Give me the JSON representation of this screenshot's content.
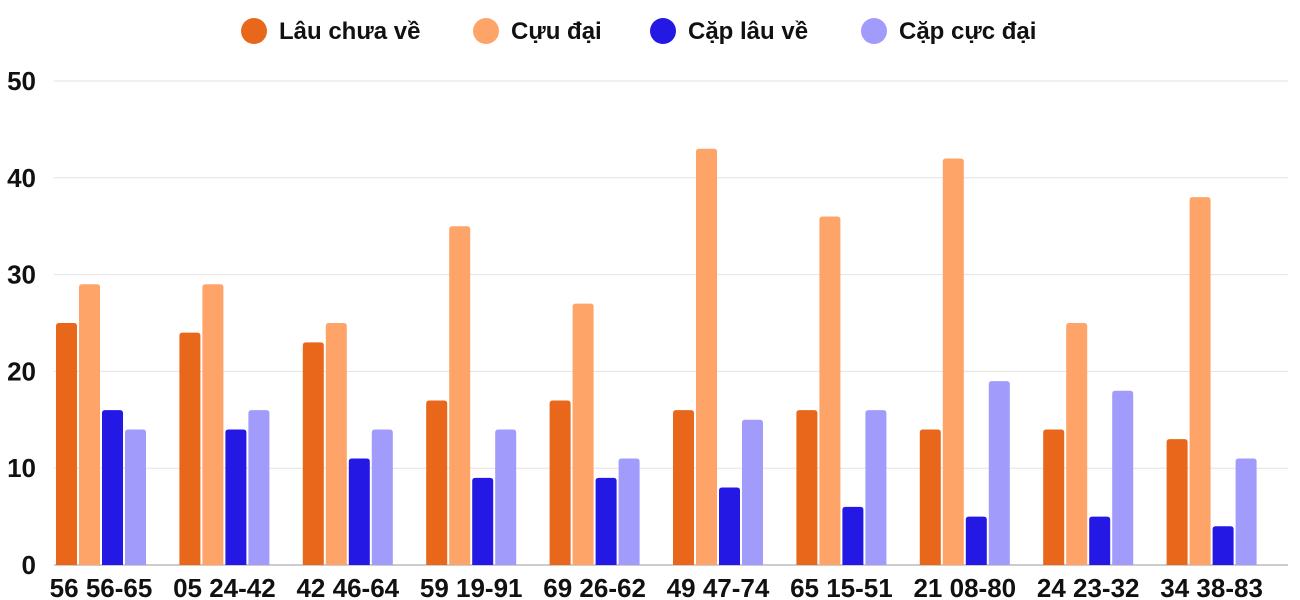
{
  "chart_data": {
    "type": "bar",
    "categories": [
      "56 56-65",
      "05 24-42",
      "42 46-64",
      "59 19-91",
      "69 26-62",
      "49 47-74",
      "65 15-51",
      "21 08-80",
      "24 23-32",
      "34 38-83"
    ],
    "series": [
      {
        "name": "Lâu chưa về",
        "color": "#e8671a",
        "values": [
          25,
          24,
          23,
          17,
          17,
          16,
          16,
          14,
          14,
          13
        ]
      },
      {
        "name": "Cựu đại",
        "color": "#ffa468",
        "values": [
          29,
          29,
          25,
          35,
          27,
          43,
          36,
          42,
          25,
          38
        ]
      },
      {
        "name": "Cặp lâu về",
        "color": "#2418e5",
        "values": [
          16,
          14,
          11,
          9,
          9,
          8,
          6,
          5,
          5,
          4
        ]
      },
      {
        "name": "Cặp cực đại",
        "color": "#a19bfb",
        "values": [
          14,
          16,
          14,
          14,
          11,
          15,
          16,
          19,
          18,
          11
        ]
      }
    ],
    "ylim": [
      0,
      50
    ],
    "yticks": [
      "0",
      "10",
      "20",
      "30",
      "40",
      "50"
    ],
    "grid": true,
    "legend": "top-center"
  }
}
